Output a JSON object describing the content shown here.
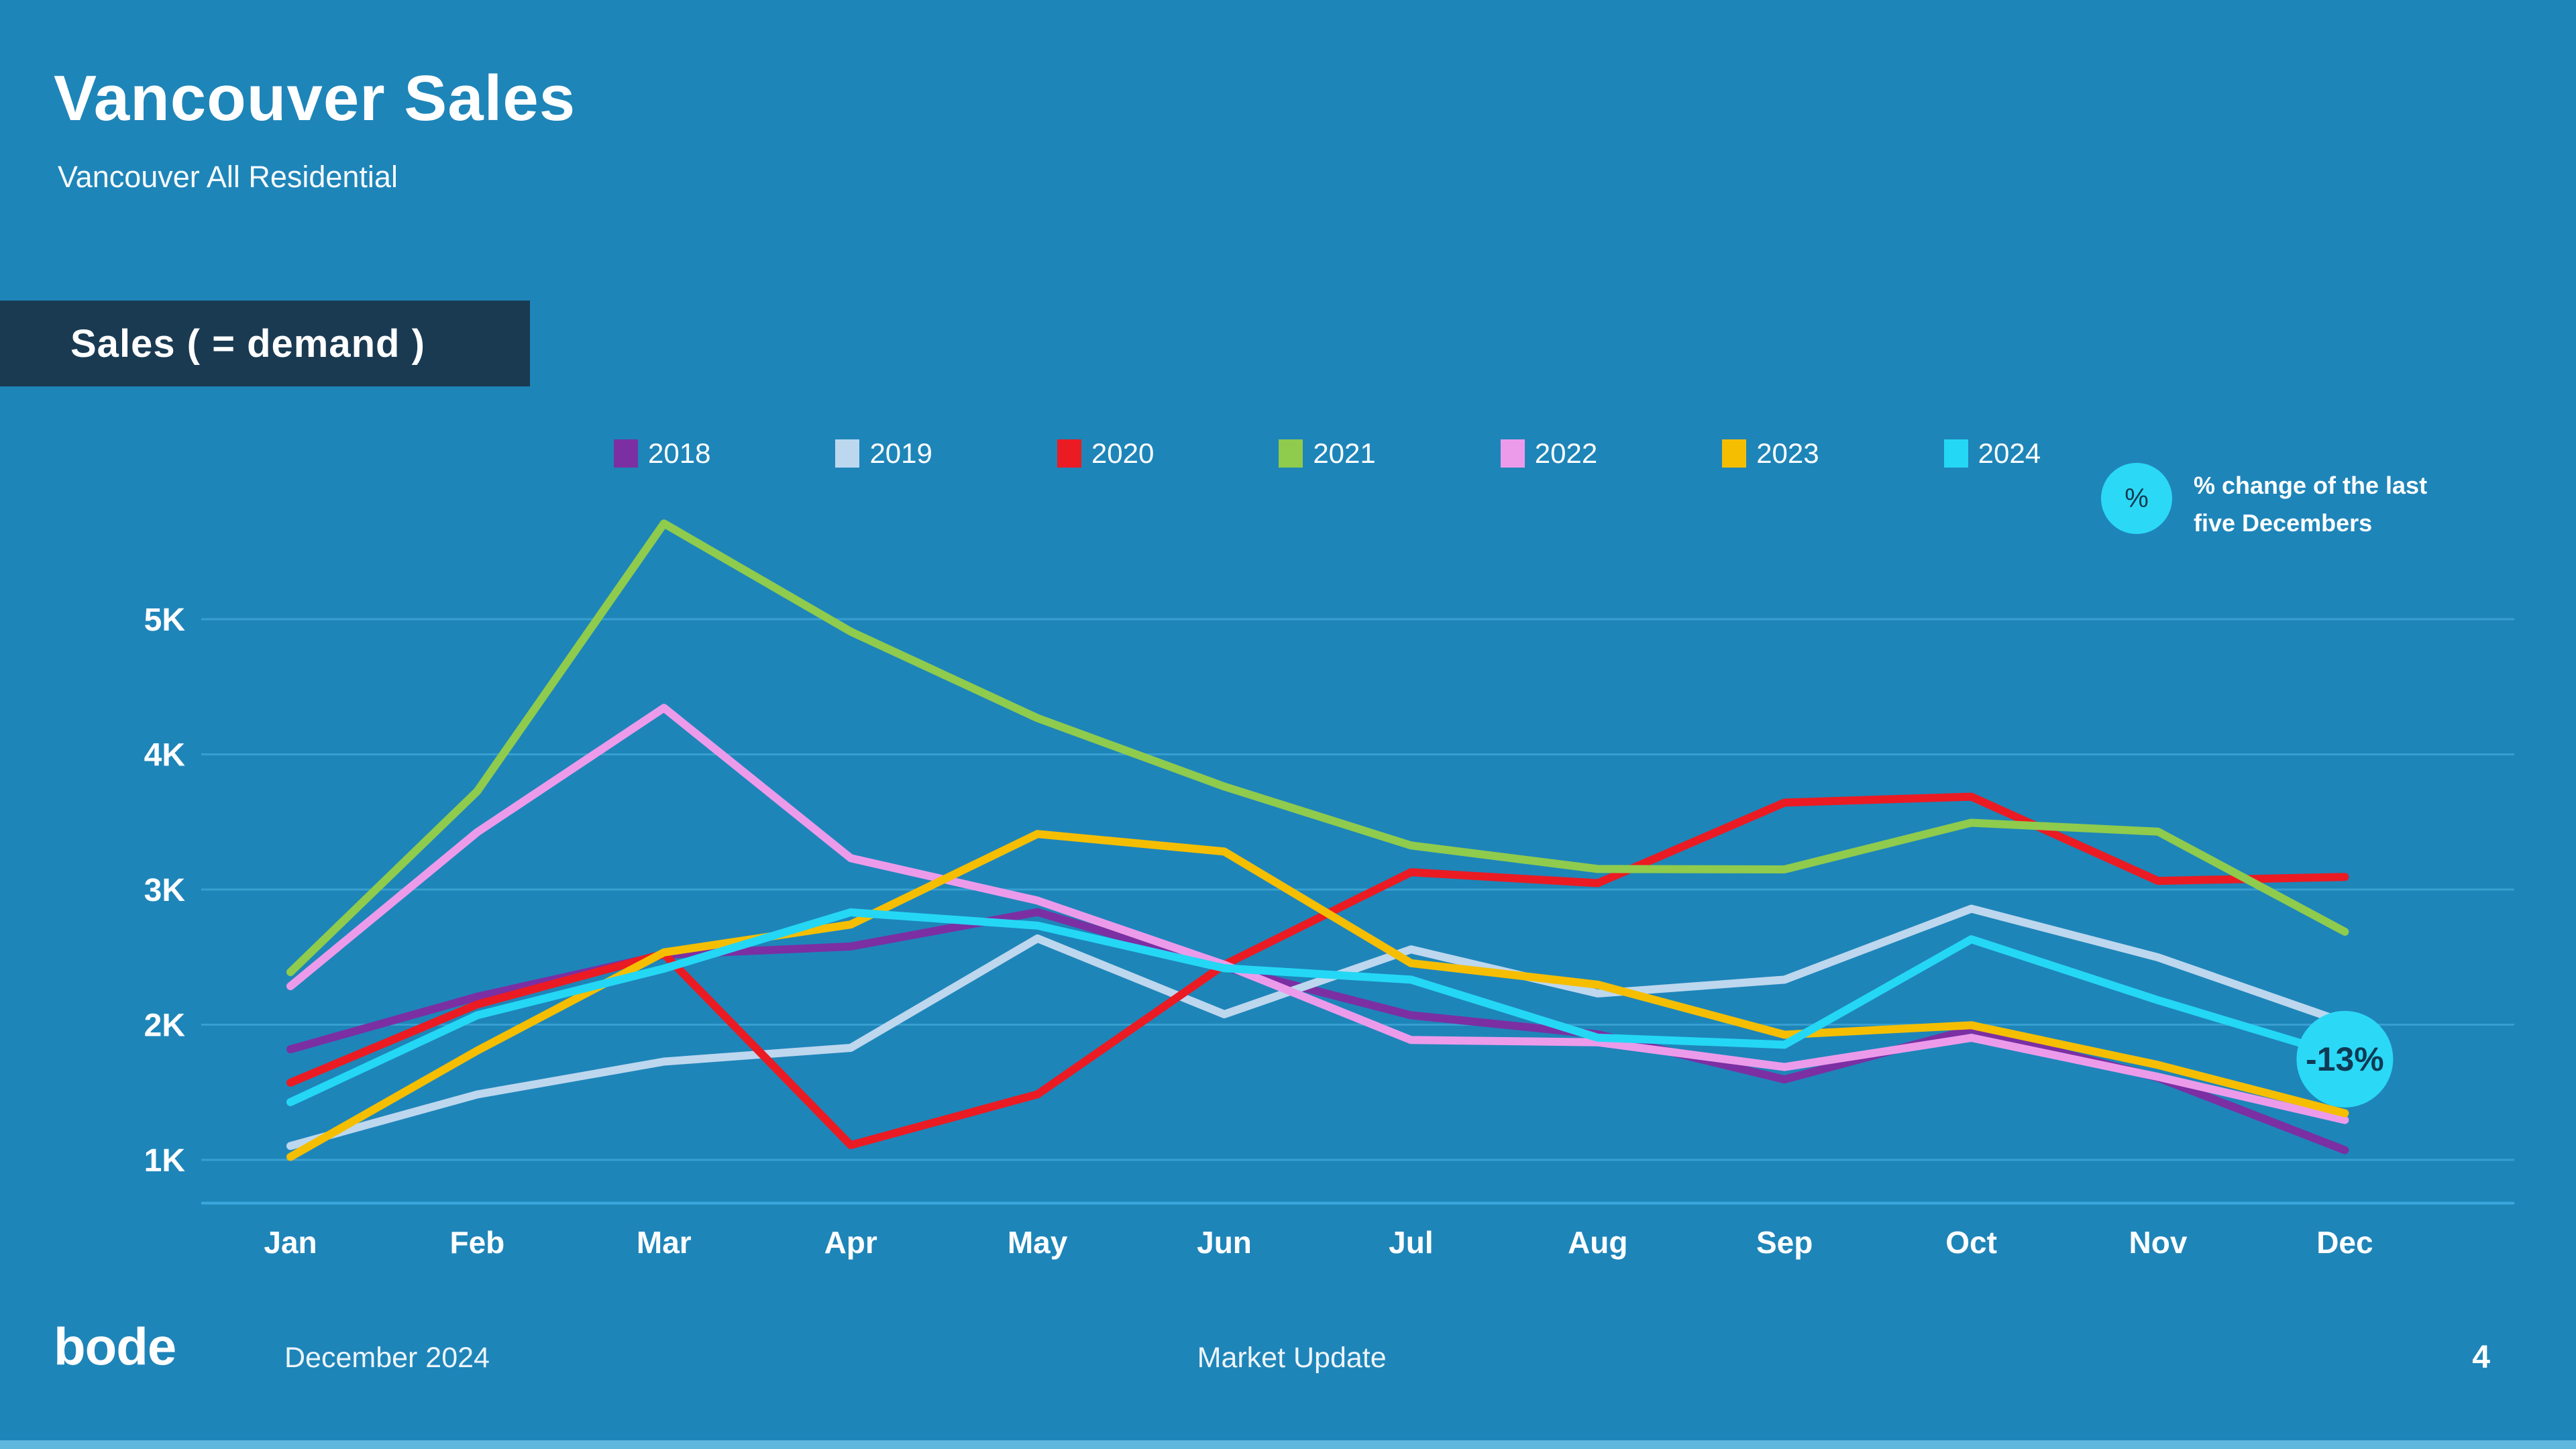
{
  "slide": {
    "title": "Vancouver Sales",
    "subtitle": "Vancouver All Residential",
    "section_label": "Sales ( = demand )",
    "note": {
      "icon": "%",
      "line1": "% change of the last",
      "line2": "five Decembers"
    },
    "footer": {
      "logo": "bode",
      "date": "December 2024",
      "center": "Market Update",
      "page": "4"
    }
  },
  "colors": {
    "background": "#1E85B9",
    "panel_navy": "#1A3A52",
    "gridline": "#4FB4E4",
    "axis_line": "#3FAEE3",
    "bubble_fill": "#2BD9F7",
    "bubble_text": "#0F3A55",
    "note_circle": "#2BD9F7",
    "bottom_strip": "#5FB7DE"
  },
  "chart_data": {
    "type": "line",
    "title": "Sales ( = demand )",
    "xlabel": "",
    "ylabel": "",
    "categories": [
      "Jan",
      "Feb",
      "Mar",
      "Apr",
      "May",
      "Jun",
      "Jul",
      "Aug",
      "Sep",
      "Oct",
      "Nov",
      "Dec"
    ],
    "y_ticks": [
      "1K",
      "2K",
      "3K",
      "4K",
      "5K"
    ],
    "y_tick_values": [
      1000,
      2000,
      3000,
      4000,
      5000
    ],
    "ylim": [
      680,
      5900
    ],
    "grid": true,
    "legend_position": "top",
    "series": [
      {
        "name": "2018",
        "color": "#7B2FA3",
        "values": [
          1818,
          2207,
          2517,
          2579,
          2833,
          2425,
          2070,
          1929,
          1595,
          1966,
          1608,
          1072
        ]
      },
      {
        "name": "2019",
        "color": "#BDD7EE",
        "values": [
          1103,
          1484,
          1727,
          1829,
          2638,
          2077,
          2557,
          2231,
          2333,
          2858,
          2498,
          2016
        ]
      },
      {
        "name": "2020",
        "color": "#EA1B23",
        "values": [
          1571,
          2150,
          2524,
          1109,
          1485,
          2443,
          3128,
          3047,
          3643,
          3687,
          3064,
          3093
        ]
      },
      {
        "name": "2021",
        "color": "#8FCB4D",
        "values": [
          2389,
          3727,
          5708,
          4908,
          4268,
          3762,
          3326,
          3152,
          3149,
          3494,
          3428,
          2688
        ]
      },
      {
        "name": "2022",
        "color": "#EC9BEA",
        "values": [
          2285,
          3424,
          4344,
          3232,
          2918,
          2444,
          1887,
          1870,
          1687,
          1903,
          1614,
          1295
        ]
      },
      {
        "name": "2023",
        "color": "#F5BE00",
        "values": [
          1022,
          1808,
          2535,
          2741,
          3411,
          3281,
          2455,
          2296,
          1926,
          1996,
          1702,
          1345
        ]
      },
      {
        "name": "2024",
        "color": "#24D7F5",
        "values": [
          1427,
          2070,
          2415,
          2831,
          2733,
          2418,
          2333,
          1904,
          1852,
          2632,
          2181,
          1765
        ]
      }
    ],
    "annotation": {
      "series": "2024",
      "category": "Dec",
      "label": "-13%"
    }
  }
}
